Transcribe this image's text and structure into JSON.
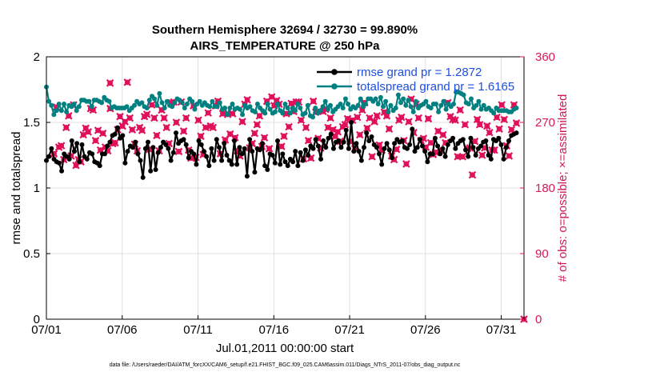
{
  "chart_data": {
    "type": "line",
    "title": [
      "Southern Hemisphere 32694 / 32730 = 99.890%",
      "AIRS_TEMPERATURE @ 250 hPa"
    ],
    "xlabel": "Jul.01,2011 00:00:00 start",
    "ylabel": "rmse and totalspread",
    "ylabel_right": "# of obs: o=possible; ×=assimilated",
    "xlim": [
      0,
      31.5
    ],
    "ylim": [
      0,
      2
    ],
    "ylim_right": [
      0,
      360
    ],
    "x_ticks": [
      0,
      5,
      10,
      15,
      20,
      25,
      30
    ],
    "x_tick_labels": [
      "07/01",
      "07/06",
      "07/11",
      "07/16",
      "07/21",
      "07/26",
      "07/31"
    ],
    "y_ticks": [
      "0",
      "0.5",
      "1",
      "1.5",
      "2"
    ],
    "y_ticks_right": [
      "0",
      "90",
      "180",
      "270",
      "360"
    ],
    "grid": true,
    "legend_position": "top-right",
    "footnote": "data file: /Users/raeder/DAI/ATM_forcXX/CAM6_setup/f.e21.FHIST_BGC.f09_025.CAM6assim.011/Diags_NTrS_2011-07/obs_diag_output.nc",
    "colors": {
      "rmse": "#000000",
      "spread": "#008080",
      "obs": "#e0105a",
      "grid": "#d8d8d8",
      "right_axis": "#d6175a",
      "legend_text": "#1f4fe0"
    },
    "series": [
      {
        "name": "rmse grand pr = 1.2872",
        "color": "#000000",
        "values": [
          1.21,
          1.24,
          1.3,
          1.22,
          1.2,
          1.19,
          1.13,
          1.26,
          1.24,
          1.22,
          1.36,
          1.28,
          1.34,
          1.2,
          1.33,
          1.24,
          1.22,
          1.27,
          1.26,
          1.2,
          1.19,
          1.17,
          1.26,
          1.26,
          1.32,
          1.35,
          1.4,
          1.41,
          1.46,
          1.38,
          1.4,
          1.19,
          1.28,
          1.32,
          1.31,
          1.35,
          1.26,
          1.21,
          1.08,
          1.3,
          1.35,
          1.13,
          1.31,
          1.14,
          1.27,
          1.31,
          1.35,
          1.33,
          1.3,
          1.21,
          1.27,
          1.42,
          1.34,
          1.36,
          1.37,
          1.33,
          1.23,
          1.28,
          1.26,
          1.18,
          1.36,
          1.33,
          1.28,
          1.24,
          1.17,
          1.3,
          1.21,
          1.37,
          1.31,
          1.21,
          1.34,
          1.25,
          1.21,
          1.18,
          1.36,
          1.18,
          1.31,
          1.26,
          1.3,
          1.09,
          1.37,
          1.28,
          1.12,
          1.3,
          1.29,
          1.34,
          1.17,
          1.14,
          1.26,
          1.25,
          1.19,
          1.36,
          1.18,
          1.26,
          1.2,
          1.17,
          1.22,
          1.2,
          1.28,
          1.17,
          1.27,
          1.21,
          1.29,
          1.25,
          1.32,
          1.3,
          1.37,
          1.32,
          1.22,
          1.36,
          1.31,
          1.38,
          1.41,
          1.3,
          1.35,
          1.36,
          1.31,
          1.35,
          1.44,
          1.3,
          1.5,
          1.28,
          1.34,
          1.28,
          1.21,
          1.31,
          1.42,
          1.36,
          1.39,
          1.33,
          1.31,
          1.26,
          1.18,
          1.3,
          1.34,
          1.29,
          1.23,
          1.34,
          1.37,
          1.35,
          1.36,
          1.31,
          1.3,
          1.33,
          1.45,
          1.28,
          1.31,
          1.37,
          1.32,
          1.28,
          1.2,
          1.26,
          1.26,
          1.38,
          1.32,
          1.26,
          1.3,
          1.24,
          1.33,
          1.36,
          1.38,
          1.3,
          1.34,
          1.36,
          1.37,
          1.29,
          1.24,
          1.38,
          1.31,
          1.25,
          1.3,
          1.32,
          1.35,
          1.36,
          1.25,
          1.22,
          1.37,
          1.36,
          1.38,
          1.33,
          1.22,
          1.31,
          1.36,
          1.4,
          1.41,
          1.42
        ]
      },
      {
        "name": "totalspread grand pr = 1.6165",
        "color": "#008080",
        "values": [
          1.77,
          1.66,
          1.63,
          1.56,
          1.59,
          1.64,
          1.59,
          1.64,
          1.58,
          1.63,
          1.62,
          1.64,
          1.59,
          1.62,
          1.67,
          1.67,
          1.66,
          1.66,
          1.62,
          1.67,
          1.67,
          1.66,
          1.65,
          1.69,
          1.67,
          1.66,
          1.61,
          1.62,
          1.61,
          1.61,
          1.61,
          1.61,
          1.62,
          1.59,
          1.61,
          1.63,
          1.66,
          1.64,
          1.65,
          1.62,
          1.61,
          1.67,
          1.7,
          1.68,
          1.63,
          1.72,
          1.65,
          1.61,
          1.66,
          1.63,
          1.62,
          1.65,
          1.68,
          1.67,
          1.65,
          1.61,
          1.64,
          1.68,
          1.66,
          1.6,
          1.64,
          1.66,
          1.63,
          1.65,
          1.63,
          1.62,
          1.66,
          1.62,
          1.62,
          1.65,
          1.6,
          1.61,
          1.56,
          1.61,
          1.64,
          1.6,
          1.61,
          1.6,
          1.56,
          1.63,
          1.61,
          1.62,
          1.59,
          1.58,
          1.64,
          1.61,
          1.59,
          1.57,
          1.64,
          1.6,
          1.57,
          1.58,
          1.64,
          1.59,
          1.57,
          1.64,
          1.61,
          1.57,
          1.61,
          1.59,
          1.64,
          1.61,
          1.56,
          1.57,
          1.63,
          1.55,
          1.54,
          1.61,
          1.57,
          1.59,
          1.62,
          1.66,
          1.6,
          1.63,
          1.58,
          1.6,
          1.62,
          1.64,
          1.61,
          1.68,
          1.64,
          1.6,
          1.62,
          1.61,
          1.63,
          1.68,
          1.62,
          1.64,
          1.68,
          1.68,
          1.66,
          1.68,
          1.64,
          1.69,
          1.62,
          1.66,
          1.58,
          1.63,
          1.59,
          1.61,
          1.71,
          1.65,
          1.68,
          1.63,
          1.67,
          1.62,
          1.58,
          1.66,
          1.61,
          1.63,
          1.64,
          1.66,
          1.62,
          1.61,
          1.64,
          1.64,
          1.58,
          1.63,
          1.66,
          1.6,
          1.64,
          1.62,
          1.64,
          1.73,
          1.73,
          1.72,
          1.71,
          1.65,
          1.64,
          1.68,
          1.61,
          1.63,
          1.66,
          1.6,
          1.63,
          1.6,
          1.61,
          1.59,
          1.57,
          1.61,
          1.59,
          1.59,
          1.59,
          1.59,
          1.58,
          1.58,
          1.6,
          1.61
        ]
      }
    ],
    "obs_counts": {
      "name": "# of obs",
      "note": "one per 4-hour bin; possible (o) and assimilated (×) coincide",
      "values": [
        227,
        291,
        236,
        238,
        219,
        263,
        279,
        224,
        294,
        211,
        219,
        216,
        253,
        262,
        257,
        289,
        287,
        245,
        259,
        232,
        255,
        236,
        231,
        289,
        241,
        242,
        260,
        278,
        265,
        271,
        325,
        276,
        260,
        240,
        231,
        263,
        259,
        278,
        281,
        233,
        294,
        276,
        252,
        231,
        287,
        276,
        263,
        241,
        297,
        298,
        270,
        230,
        298,
        258,
        276,
        232,
        221,
        293,
        222,
        273,
        251,
        226,
        263,
        283,
        265,
        263,
        293,
        299,
        227,
        282,
        246,
        281,
        254,
        282,
        249,
        231,
        224,
        271,
        295,
        301,
        235,
        241,
        255,
        267,
        279,
        237,
        249,
        299,
        234,
        305,
        293,
        300,
        295,
        237,
        251,
        282,
        264,
        296,
        285,
        298,
        298,
        273,
        220,
        263,
        245,
        221,
        299,
        284,
        248,
        235,
        285,
        288,
        263,
        276,
        260,
        251,
        257,
        244,
        264,
        267,
        275,
        244,
        273,
        234,
        277,
        253,
        287,
        297,
        262,
        276,
        223,
        271,
        279,
        239,
        232,
        284,
        279,
        261,
        224,
        219,
        233,
        273,
        277,
        245,
        213,
        271,
        302,
        256,
        295,
        276,
        245,
        248,
        236,
        275,
        242,
        226,
        229,
        258,
        232,
        253,
        242,
        297,
        278,
        274,
        273,
        223,
        287,
        223,
        267,
        234,
        235,
        198,
        244,
        274,
        267,
        225,
        235,
        265,
        256,
        232,
        232,
        277,
        261,
        294,
        274,
        238,
        224,
        260,
        294,
        269
      ]
    },
    "extra_obs_points": [
      {
        "x": 4.2,
        "y": 324
      },
      {
        "x": 31.5,
        "y": 0
      }
    ]
  }
}
